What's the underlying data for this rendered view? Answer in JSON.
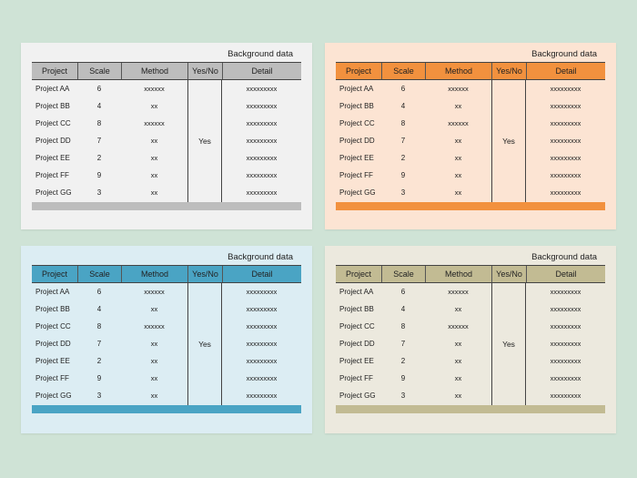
{
  "caption": "Background data",
  "headers": [
    "Project",
    "Scale",
    "Method",
    "Yes/No",
    "Detail"
  ],
  "rows": [
    {
      "project": "Project AA",
      "scale": "6",
      "method": "xxxxxx",
      "detail": "xxxxxxxxx"
    },
    {
      "project": "Project BB",
      "scale": "4",
      "method": "xx",
      "detail": "xxxxxxxxx"
    },
    {
      "project": "Project CC",
      "scale": "8",
      "method": "xxxxxx",
      "detail": "xxxxxxxxx"
    },
    {
      "project": "Project DD",
      "scale": "7",
      "method": "xx",
      "detail": "xxxxxxxxx"
    },
    {
      "project": "Project EE",
      "scale": "2",
      "method": "xx",
      "detail": "xxxxxxxxx"
    },
    {
      "project": "Project FF",
      "scale": "9",
      "method": "xx",
      "detail": "xxxxxxxxx"
    },
    {
      "project": "Project GG",
      "scale": "3",
      "method": "xx",
      "detail": "xxxxxxxxx"
    }
  ],
  "yes_label": "Yes",
  "cards": [
    {
      "id": "card-gray",
      "name": "table-card-gray",
      "accent": "#bdbdbd",
      "background": "#f1f1f1"
    },
    {
      "id": "card-orange",
      "name": "table-card-orange",
      "accent": "#f2913e",
      "background": "#fce4d3"
    },
    {
      "id": "card-blue",
      "name": "table-card-blue",
      "accent": "#4aa4c4",
      "background": "#dcedf3"
    },
    {
      "id": "card-tan",
      "name": "table-card-tan",
      "accent": "#c2bb93",
      "background": "#ece9de"
    }
  ]
}
